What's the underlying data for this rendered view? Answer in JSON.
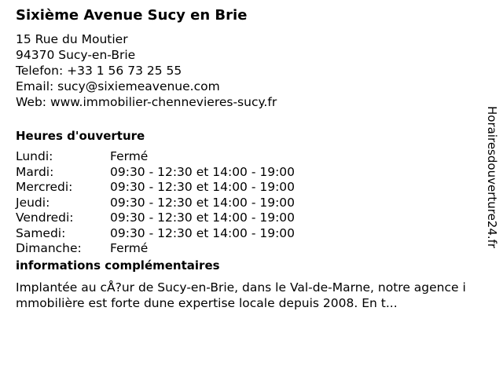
{
  "title": "Sixième Avenue Sucy en Brie",
  "address": [
    "15 Rue du Moutier",
    "94370 Sucy-en-Brie",
    "Telefon: +33 1 56 73 25 55",
    "Email: sucy@sixiemeavenue.com",
    "Web: www.immobilier-chennevieres-sucy.fr"
  ],
  "hours_heading": "Heures d'ouverture",
  "hours": [
    {
      "day": "Lundi:",
      "time": "Fermé"
    },
    {
      "day": "Mardi:",
      "time": "09:30 - 12:30 et 14:00 - 19:00"
    },
    {
      "day": "Mercredi:",
      "time": "09:30 - 12:30 et 14:00 - 19:00"
    },
    {
      "day": "Jeudi:",
      "time": "09:30 - 12:30 et 14:00 - 19:00"
    },
    {
      "day": "Vendredi:",
      "time": "09:30 - 12:30 et 14:00 - 19:00"
    },
    {
      "day": "Samedi:",
      "time": "09:30 - 12:30 et 14:00 - 19:00"
    },
    {
      "day": "Dimanche:",
      "time": "Fermé"
    }
  ],
  "info_heading": "informations complémentaires",
  "info_text": "Implantée au cÅ?ur de Sucy-en-Brie, dans le Val-de-Marne, notre agence immobilière est forte dune expertise locale depuis 2008. En t...",
  "watermark": "Horairesdouverture24.fr"
}
